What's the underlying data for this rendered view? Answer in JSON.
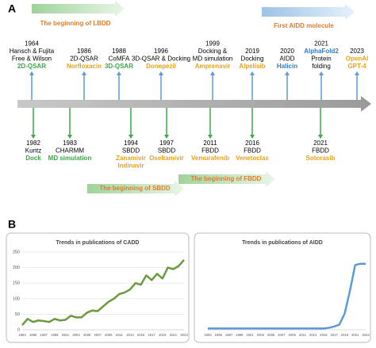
{
  "panel_a": {
    "label": "A",
    "banners": [
      "The beginning of LBDD",
      "First AIDD molecule",
      "The beginning of SBDD",
      "The beginning of FBDD"
    ],
    "events_above": [
      {
        "year": "1964",
        "lines": [
          "Hansch & Fujita",
          "Free & Wilson"
        ],
        "accent": [
          "2D-QSAR"
        ],
        "accent_color": "#3aa845"
      },
      {
        "year": "1986",
        "lines": [
          "2D-QSAR"
        ],
        "accent": [
          "Norfloxacin"
        ],
        "accent_color": "#e6a11c"
      },
      {
        "year": "1988",
        "lines": [
          "CoMFA"
        ],
        "accent": [
          "3D-QSAR"
        ],
        "accent_color": "#3aa845"
      },
      {
        "year": "1996",
        "lines": [
          "3D-QSAR & Docking"
        ],
        "accent": [
          "Donepezil"
        ],
        "accent_color": "#e6a11c"
      },
      {
        "year": "1999",
        "lines": [
          "Docking &",
          "MD simulation"
        ],
        "accent": [
          "Amprenavir"
        ],
        "accent_color": "#e6a11c"
      },
      {
        "year": "2019",
        "lines": [
          "Docking"
        ],
        "accent": [
          "Alpelisib"
        ],
        "accent_color": "#e6a11c"
      },
      {
        "year": "2020",
        "lines": [
          "AIDD"
        ],
        "accent": [
          "Halicin"
        ],
        "accent_color": "#2f7bc1"
      },
      {
        "year": "2021",
        "lines": [],
        "accent": [
          "AlphaFold2"
        ],
        "accent_color": "#2f7bc1",
        "extra": [
          "Protein",
          "folding"
        ]
      },
      {
        "year": "2023",
        "lines": [],
        "accent": [
          "OpenAI",
          "GPT-4"
        ],
        "accent_color": "#e6a11c"
      }
    ],
    "events_below": [
      {
        "year": "1982",
        "lines": [
          "Kuntz"
        ],
        "accent": [
          "Dock"
        ],
        "accent_color": "#3aa845"
      },
      {
        "year": "1983",
        "lines": [
          "CHARMM"
        ],
        "accent": [
          "MD simulation"
        ],
        "accent_color": "#3aa845"
      },
      {
        "year": "1994",
        "lines": [
          "SBDD"
        ],
        "accent": [
          "Zanamivir",
          "Indinavir"
        ],
        "accent_color": "#e6a11c"
      },
      {
        "year": "1997",
        "lines": [
          "SBDD"
        ],
        "accent": [
          "Oseltamivir"
        ],
        "accent_color": "#e6a11c"
      },
      {
        "year": "2011",
        "lines": [
          "FBDD"
        ],
        "accent": [
          "Vemurafenib"
        ],
        "accent_color": "#e6a11c"
      },
      {
        "year": "2016",
        "lines": [
          "FBDD"
        ],
        "accent": [
          "Venetoclax"
        ],
        "accent_color": "#e6a11c"
      },
      {
        "year": "2021",
        "lines": [
          "FBDD"
        ],
        "accent": [
          "Sotorasib"
        ],
        "accent_color": "#e6a11c"
      }
    ]
  },
  "panel_b_label": "B",
  "chart_data": [
    {
      "type": "line",
      "title": "Trends in publications of CADD",
      "color": "#6b9a3c",
      "grid": true,
      "x": [
        1993,
        1994,
        1995,
        1996,
        1997,
        1998,
        1999,
        2000,
        2001,
        2002,
        2003,
        2004,
        2005,
        2006,
        2007,
        2008,
        2009,
        2010,
        2011,
        2012,
        2013,
        2014,
        2015,
        2016,
        2017,
        2018,
        2019,
        2020,
        2021,
        2022,
        2023
      ],
      "values": [
        15,
        35,
        25,
        30,
        28,
        25,
        35,
        30,
        32,
        45,
        40,
        40,
        55,
        62,
        60,
        75,
        90,
        100,
        115,
        120,
        130,
        150,
        145,
        175,
        160,
        180,
        165,
        200,
        195,
        205,
        225
      ],
      "xlim": [
        1993,
        2023
      ],
      "xticks": [
        1993,
        1995,
        1997,
        1999,
        2001,
        2003,
        2005,
        2007,
        2009,
        2011,
        2013,
        2015,
        2017,
        2019,
        2021,
        2023
      ],
      "ylim": [
        0,
        250
      ],
      "yticks": [
        0,
        50,
        100,
        150,
        200,
        250
      ]
    },
    {
      "type": "line",
      "title": "Trends in publications of AIDD",
      "color": "#5b9bd5",
      "grid": false,
      "x": [
        1993,
        1994,
        1995,
        1996,
        1997,
        1998,
        1999,
        2000,
        2001,
        2002,
        2003,
        2004,
        2005,
        2006,
        2007,
        2008,
        2009,
        2010,
        2011,
        2012,
        2013,
        2014,
        2015,
        2016,
        2017,
        2018,
        2019,
        2020,
        2021,
        2022,
        2023
      ],
      "values": [
        2,
        2,
        2,
        2,
        2,
        2,
        2,
        2,
        2,
        2,
        2,
        2,
        2,
        2,
        2,
        2,
        2,
        2,
        2,
        2,
        2,
        2,
        2,
        3,
        5,
        8,
        25,
        60,
        100,
        102,
        102
      ],
      "xlim": [
        1993,
        2023
      ],
      "xticks": [
        1993,
        1995,
        1997,
        1999,
        2001,
        2003,
        2005,
        2007,
        2009,
        2011,
        2013,
        2015,
        2017,
        2019,
        2021,
        2023
      ],
      "ylim": [
        0,
        120
      ]
    }
  ]
}
